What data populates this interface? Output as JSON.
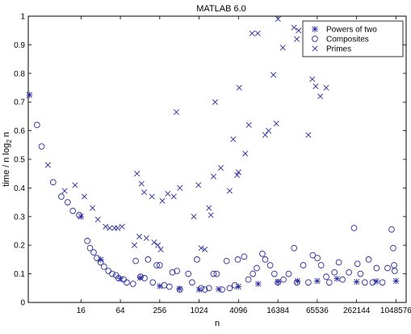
{
  "chart_data": {
    "type": "scatter",
    "title": "MATLAB 6.0",
    "xlabel": "n",
    "ylabel_parts": [
      "time / n log",
      "2",
      " n"
    ],
    "x_scale": "log2",
    "xlim": [
      2.5,
      1500000
    ],
    "ylim": [
      0,
      1
    ],
    "x_ticks": [
      {
        "value": 16,
        "label": "16"
      },
      {
        "value": 64,
        "label": "64"
      },
      {
        "value": 256,
        "label": "256"
      },
      {
        "value": 1024,
        "label": "1024"
      },
      {
        "value": 4096,
        "label": "4096"
      },
      {
        "value": 16384,
        "label": "16384"
      },
      {
        "value": 65536,
        "label": "65536"
      },
      {
        "value": 262144,
        "label": "262144"
      },
      {
        "value": 1048576,
        "label": "1048576"
      }
    ],
    "y_ticks": [
      {
        "value": 0,
        "label": "0"
      },
      {
        "value": 0.1,
        "label": "0.1"
      },
      {
        "value": 0.2,
        "label": "0.2"
      },
      {
        "value": 0.3,
        "label": "0.3"
      },
      {
        "value": 0.4,
        "label": "0.4"
      },
      {
        "value": 0.5,
        "label": "0.5"
      },
      {
        "value": 0.6,
        "label": "0.6"
      },
      {
        "value": 0.7,
        "label": "0.7"
      },
      {
        "value": 0.8,
        "label": "0.8"
      },
      {
        "value": 0.9,
        "label": "0.9"
      },
      {
        "value": 1,
        "label": "1"
      }
    ],
    "grid": false,
    "legend_position": "top-right",
    "color": "#2a2aa0",
    "series": [
      {
        "name": "Powers of two",
        "marker": "asterisk",
        "points": [
          [
            2.6,
            0.725
          ],
          [
            16,
            0.3
          ],
          [
            32,
            0.15
          ],
          [
            64,
            0.083
          ],
          [
            128,
            0.086
          ],
          [
            256,
            0.057
          ],
          [
            512,
            0.048
          ],
          [
            1024,
            0.045
          ],
          [
            2048,
            0.047
          ],
          [
            4096,
            0.055
          ],
          [
            8192,
            0.065
          ],
          [
            16384,
            0.072
          ],
          [
            32768,
            0.075
          ],
          [
            65536,
            0.075
          ],
          [
            131072,
            0.083
          ],
          [
            262144,
            0.072
          ],
          [
            524288,
            0.074
          ],
          [
            1048576,
            0.075
          ]
        ]
      },
      {
        "name": "Composites",
        "marker": "circle",
        "points": [
          [
            3.4,
            0.62
          ],
          [
            4,
            0.545
          ],
          [
            6,
            0.42
          ],
          [
            8,
            0.37
          ],
          [
            10,
            0.35
          ],
          [
            12,
            0.32
          ],
          [
            15,
            0.305
          ],
          [
            20,
            0.215
          ],
          [
            22,
            0.19
          ],
          [
            25,
            0.175
          ],
          [
            28,
            0.155
          ],
          [
            32,
            0.14
          ],
          [
            36,
            0.125
          ],
          [
            42,
            0.11
          ],
          [
            48,
            0.1
          ],
          [
            55,
            0.095
          ],
          [
            60,
            0.085
          ],
          [
            72,
            0.08
          ],
          [
            80,
            0.07
          ],
          [
            100,
            0.065
          ],
          [
            110,
            0.145
          ],
          [
            130,
            0.09
          ],
          [
            150,
            0.085
          ],
          [
            170,
            0.15
          ],
          [
            200,
            0.07
          ],
          [
            230,
            0.13
          ],
          [
            256,
            0.13
          ],
          [
            300,
            0.06
          ],
          [
            360,
            0.055
          ],
          [
            400,
            0.105
          ],
          [
            470,
            0.11
          ],
          [
            520,
            0.045
          ],
          [
            700,
            0.1
          ],
          [
            800,
            0.07
          ],
          [
            950,
            0.15
          ],
          [
            1100,
            0.05
          ],
          [
            1250,
            0.045
          ],
          [
            1450,
            0.05
          ],
          [
            1700,
            0.1
          ],
          [
            1900,
            0.1
          ],
          [
            2300,
            0.045
          ],
          [
            2700,
            0.145
          ],
          [
            3000,
            0.05
          ],
          [
            3600,
            0.06
          ],
          [
            4000,
            0.15
          ],
          [
            5000,
            0.16
          ],
          [
            5800,
            0.08
          ],
          [
            6800,
            0.1
          ],
          [
            7800,
            0.12
          ],
          [
            9500,
            0.17
          ],
          [
            10500,
            0.15
          ],
          [
            12500,
            0.13
          ],
          [
            14500,
            0.1
          ],
          [
            16384,
            0.07
          ],
          [
            20000,
            0.08
          ],
          [
            24000,
            0.1
          ],
          [
            29000,
            0.19
          ],
          [
            32000,
            0.07
          ],
          [
            40000,
            0.13
          ],
          [
            48000,
            0.07
          ],
          [
            56000,
            0.165
          ],
          [
            66000,
            0.155
          ],
          [
            75000,
            0.13
          ],
          [
            90000,
            0.09
          ],
          [
            100000,
            0.07
          ],
          [
            120000,
            0.105
          ],
          [
            140000,
            0.14
          ],
          [
            160000,
            0.08
          ],
          [
            200000,
            0.105
          ],
          [
            240000,
            0.26
          ],
          [
            270000,
            0.135
          ],
          [
            300000,
            0.1
          ],
          [
            350000,
            0.07
          ],
          [
            400000,
            0.15
          ],
          [
            460000,
            0.07
          ],
          [
            530000,
            0.12
          ],
          [
            650000,
            0.07
          ],
          [
            780000,
            0.12
          ],
          [
            900000,
            0.255
          ],
          [
            950000,
            0.19
          ],
          [
            980000,
            0.13
          ],
          [
            1000000,
            0.11
          ]
        ]
      },
      {
        "name": "Primes",
        "marker": "x",
        "points": [
          [
            2.6,
            0.725
          ],
          [
            5,
            0.48
          ],
          [
            9,
            0.39
          ],
          [
            13,
            0.41
          ],
          [
            18,
            0.37
          ],
          [
            24,
            0.33
          ],
          [
            29,
            0.29
          ],
          [
            38,
            0.265
          ],
          [
            44,
            0.26
          ],
          [
            52,
            0.26
          ],
          [
            58,
            0.26
          ],
          [
            68,
            0.265
          ],
          [
            105,
            0.2
          ],
          [
            115,
            0.45
          ],
          [
            125,
            0.23
          ],
          [
            135,
            0.415
          ],
          [
            148,
            0.385
          ],
          [
            160,
            0.225
          ],
          [
            195,
            0.37
          ],
          [
            210,
            0.21
          ],
          [
            240,
            0.2
          ],
          [
            265,
            0.185
          ],
          [
            280,
            0.355
          ],
          [
            340,
            0.38
          ],
          [
            420,
            0.37
          ],
          [
            460,
            0.665
          ],
          [
            520,
            0.4
          ],
          [
            850,
            0.3
          ],
          [
            1000,
            0.41
          ],
          [
            1100,
            0.19
          ],
          [
            1250,
            0.185
          ],
          [
            1450,
            0.33
          ],
          [
            1550,
            0.305
          ],
          [
            1700,
            0.44
          ],
          [
            1800,
            0.7
          ],
          [
            2200,
            0.47
          ],
          [
            3000,
            0.39
          ],
          [
            3400,
            0.57
          ],
          [
            3900,
            0.445
          ],
          [
            4096,
            0.455
          ],
          [
            4200,
            0.75
          ],
          [
            5200,
            0.52
          ],
          [
            5900,
            0.62
          ],
          [
            6600,
            0.94
          ],
          [
            8100,
            0.94
          ],
          [
            10500,
            0.585
          ],
          [
            11800,
            0.6
          ],
          [
            14000,
            0.795
          ],
          [
            15500,
            0.625
          ],
          [
            16500,
            0.99
          ],
          [
            19500,
            0.89
          ],
          [
            29000,
            0.96
          ],
          [
            32000,
            0.92
          ],
          [
            34000,
            0.95
          ],
          [
            43000,
            0.915
          ],
          [
            48000,
            0.585
          ],
          [
            55000,
            0.78
          ],
          [
            62000,
            0.755
          ],
          [
            73000,
            0.72
          ],
          [
            90000,
            0.75
          ]
        ]
      }
    ]
  }
}
